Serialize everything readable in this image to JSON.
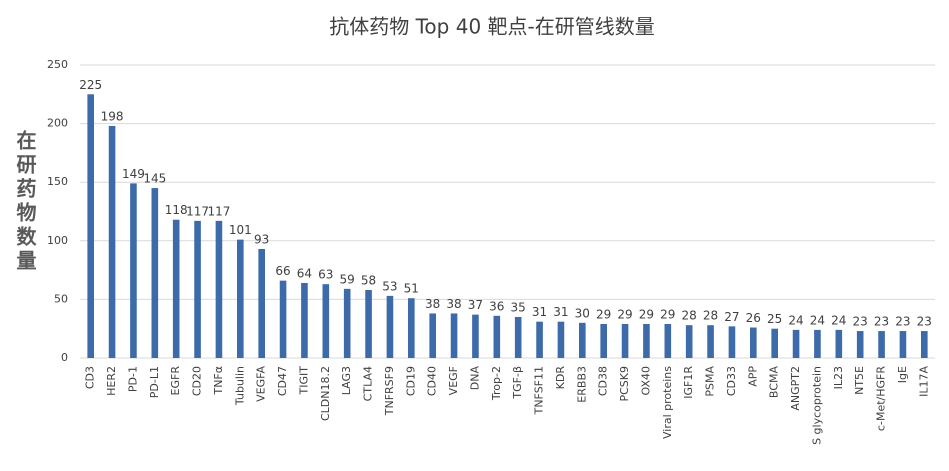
{
  "chart_data": {
    "type": "bar",
    "title": "抗体药物 Top 40 靶点-在研管线数量",
    "y_label": "在研药物数量",
    "categories": [
      "CD3",
      "HER2",
      "PD-1",
      "PD-L1",
      "EGFR",
      "CD20",
      "TNFα",
      "Tubulin",
      "VEGFA",
      "CD47",
      "TIGIT",
      "CLDN18.2",
      "LAG3",
      "CTLA4",
      "TNFRSF9",
      "CD19",
      "CD40",
      "VEGF",
      "DNA",
      "Trop-2",
      "TGF-β",
      "TNFSF11",
      "KDR",
      "ERBB3",
      "CD38",
      "PCSK9",
      "OX40",
      "Viral proteins",
      "IGF1R",
      "PSMA",
      "CD33",
      "APP",
      "BCMA",
      "ANGPT2",
      "S glycoprotein",
      "IL23",
      "NT5E",
      "c-Met/HGFR",
      "IgE",
      "IL17A"
    ],
    "values": [
      225,
      198,
      149,
      145,
      118,
      117,
      117,
      101,
      93,
      66,
      64,
      63,
      59,
      58,
      53,
      51,
      38,
      38,
      37,
      36,
      35,
      31,
      31,
      30,
      29,
      29,
      29,
      29,
      28,
      28,
      27,
      26,
      25,
      24,
      24,
      24,
      23,
      23,
      23,
      23
    ],
    "color": "#3d6aa8",
    "ylim": [
      0,
      250
    ],
    "yticks": [
      0,
      50,
      100,
      150,
      200,
      250
    ],
    "grid": true
  }
}
